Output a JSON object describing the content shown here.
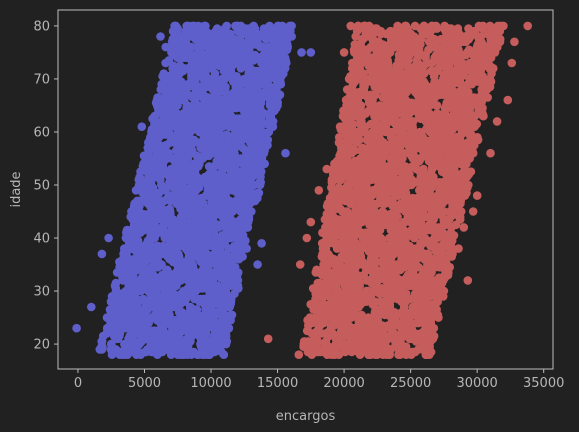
{
  "chart_data": {
    "type": "scatter",
    "xlabel": "encargos",
    "ylabel": "idade",
    "xlim": [
      -1500,
      35700
    ],
    "ylim": [
      15.3,
      83
    ],
    "xticks": [
      0,
      5000,
      10000,
      15000,
      20000,
      25000,
      30000,
      35000
    ],
    "yticks": [
      20,
      30,
      40,
      50,
      60,
      70,
      80
    ],
    "grid": false,
    "series": [
      {
        "color": "#5f5fcc",
        "band": {
          "age_range": [
            18,
            80
          ],
          "left_at_18": 1500,
          "left_at_80": 7200,
          "right_at_18": 11000,
          "right_at_80": 16300
        },
        "outliers": [
          [
            -100,
            23
          ],
          [
            1000,
            27
          ],
          [
            1800,
            37
          ],
          [
            2300,
            40
          ],
          [
            4800,
            61
          ],
          [
            6200,
            78
          ],
          [
            6600,
            76
          ],
          [
            16800,
            75
          ],
          [
            17500,
            75
          ],
          [
            15600,
            56
          ],
          [
            13800,
            39
          ],
          [
            13500,
            35
          ],
          [
            14500,
            63
          ],
          [
            15000,
            69
          ]
        ]
      },
      {
        "color": "#c65d5d",
        "band": {
          "age_range": [
            18,
            80
          ],
          "left_at_18": 16800,
          "left_at_80": 21000,
          "right_at_18": 26500,
          "right_at_80": 32000
        },
        "outliers": [
          [
            14300,
            21
          ],
          [
            16600,
            18
          ],
          [
            16700,
            35
          ],
          [
            17200,
            40
          ],
          [
            17500,
            43
          ],
          [
            18100,
            49
          ],
          [
            18700,
            53
          ],
          [
            20000,
            75
          ],
          [
            20500,
            80
          ],
          [
            19700,
            61
          ],
          [
            29300,
            32
          ],
          [
            30000,
            48
          ],
          [
            29700,
            45
          ],
          [
            31000,
            56
          ],
          [
            32300,
            66
          ],
          [
            32600,
            73
          ],
          [
            32800,
            77
          ],
          [
            33800,
            80
          ],
          [
            31500,
            62
          ],
          [
            28600,
            38
          ],
          [
            29000,
            42
          ]
        ]
      }
    ]
  }
}
